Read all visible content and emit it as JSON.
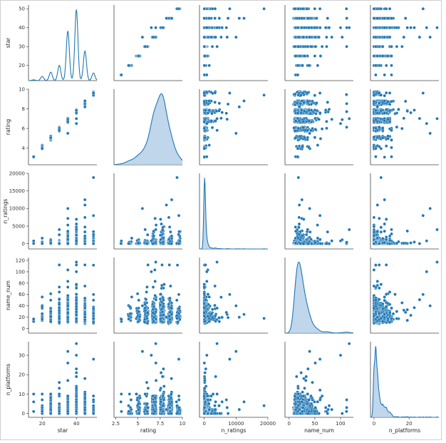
{
  "chart_data": {
    "type": "pairplot",
    "variables": [
      "star",
      "rating",
      "n_ratings",
      "name_num",
      "n_platforms"
    ],
    "point_color": "#1f77b4",
    "fill_color": "#a9c8e4",
    "ranges": {
      "star": [
        12,
        52
      ],
      "rating": [
        2.3,
        10.0
      ],
      "n_ratings": [
        -1500,
        20000
      ],
      "name_num": [
        -8,
        125
      ],
      "n_platforms": [
        -2,
        37
      ]
    },
    "ticks": {
      "star": [
        20,
        30,
        40,
        50
      ],
      "rating": [
        4,
        6,
        8,
        10
      ],
      "n_ratings": [
        0,
        5000,
        10000,
        15000,
        20000
      ],
      "name_num": [
        0,
        20,
        40,
        60,
        80,
        100,
        120
      ],
      "n_platforms": [
        0,
        10,
        20,
        30
      ]
    },
    "bottom_ticks": {
      "star": [
        20,
        40
      ],
      "rating": [
        2.5,
        5.0,
        7.5,
        10.0
      ],
      "n_ratings": [
        0,
        10000,
        20000
      ],
      "name_num": [
        0,
        50,
        100
      ],
      "n_platforms": [
        0,
        20
      ]
    },
    "distribution_notes": {
      "star": "discrete values 15,20,25,30,35,40,45,50 with peaks at 35, 40, 45",
      "rating": "unimodal, peak near 7.5, range ~3 to 9.7",
      "n_ratings": "heavily right-skewed, most near 0, max ~18800",
      "name_num": "right-skewed, peak near 18, max ~118",
      "n_platforms": "right-skewed, peak near 1, max ~36"
    }
  }
}
